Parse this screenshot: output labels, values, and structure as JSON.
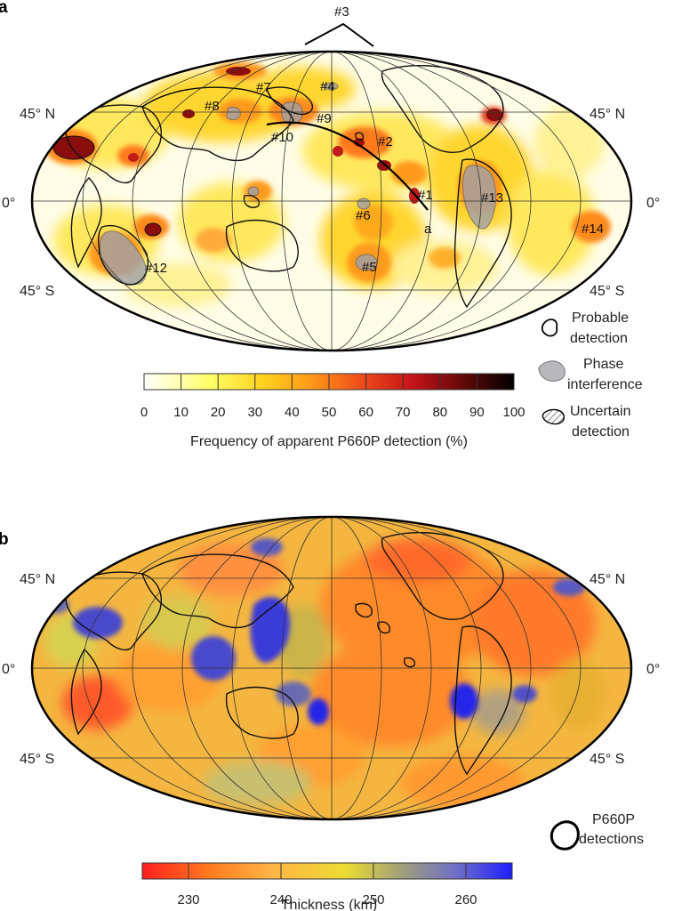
{
  "panel_a": {
    "letter": "a",
    "lat_labels": {
      "n45": "45° N",
      "eq": "0°",
      "s45": "45° S"
    },
    "region_labels": [
      {
        "id": "1",
        "text": "#1"
      },
      {
        "id": "2",
        "text": "#2"
      },
      {
        "id": "3",
        "text": "#3"
      },
      {
        "id": "4",
        "text": "#4"
      },
      {
        "id": "5",
        "text": "#5"
      },
      {
        "id": "6",
        "text": "#6"
      },
      {
        "id": "7",
        "text": "#7"
      },
      {
        "id": "8",
        "text": "#8"
      },
      {
        "id": "9",
        "text": "#9"
      },
      {
        "id": "10",
        "text": "#10"
      },
      {
        "id": "12",
        "text": "#12"
      },
      {
        "id": "13",
        "text": "#13"
      },
      {
        "id": "14",
        "text": "#14"
      }
    ],
    "profile_label": "a",
    "colorbar": {
      "ticks": [
        "0",
        "10",
        "20",
        "30",
        "40",
        "50",
        "60",
        "70",
        "80",
        "90",
        "100"
      ],
      "title": "Frequency of apparent P660P detection (%)",
      "colors": [
        "#ffffff",
        "#ffff66",
        "#ffd21e",
        "#ff9a1a",
        "#f0501a",
        "#c8141a",
        "#640808",
        "#000000"
      ]
    },
    "legend": {
      "probable": [
        "Probable",
        "detection"
      ],
      "phase": [
        "Phase",
        "interference"
      ],
      "uncertain": [
        "Uncertain",
        "detection"
      ]
    }
  },
  "panel_b": {
    "letter": "b",
    "lat_labels": {
      "n45": "45° N",
      "eq": "0°",
      "s45": "45° S"
    },
    "colorbar": {
      "ticks": [
        "230",
        "240",
        "250",
        "260"
      ],
      "title": "Thickness (km)",
      "colors": [
        "#ff1e1e",
        "#ff7a1e",
        "#ffb446",
        "#ebdc32",
        "#a0a07a",
        "#6e6ec8",
        "#2d2df0",
        "#1e1eff"
      ]
    },
    "legend": [
      "P660P",
      "detections"
    ]
  }
}
